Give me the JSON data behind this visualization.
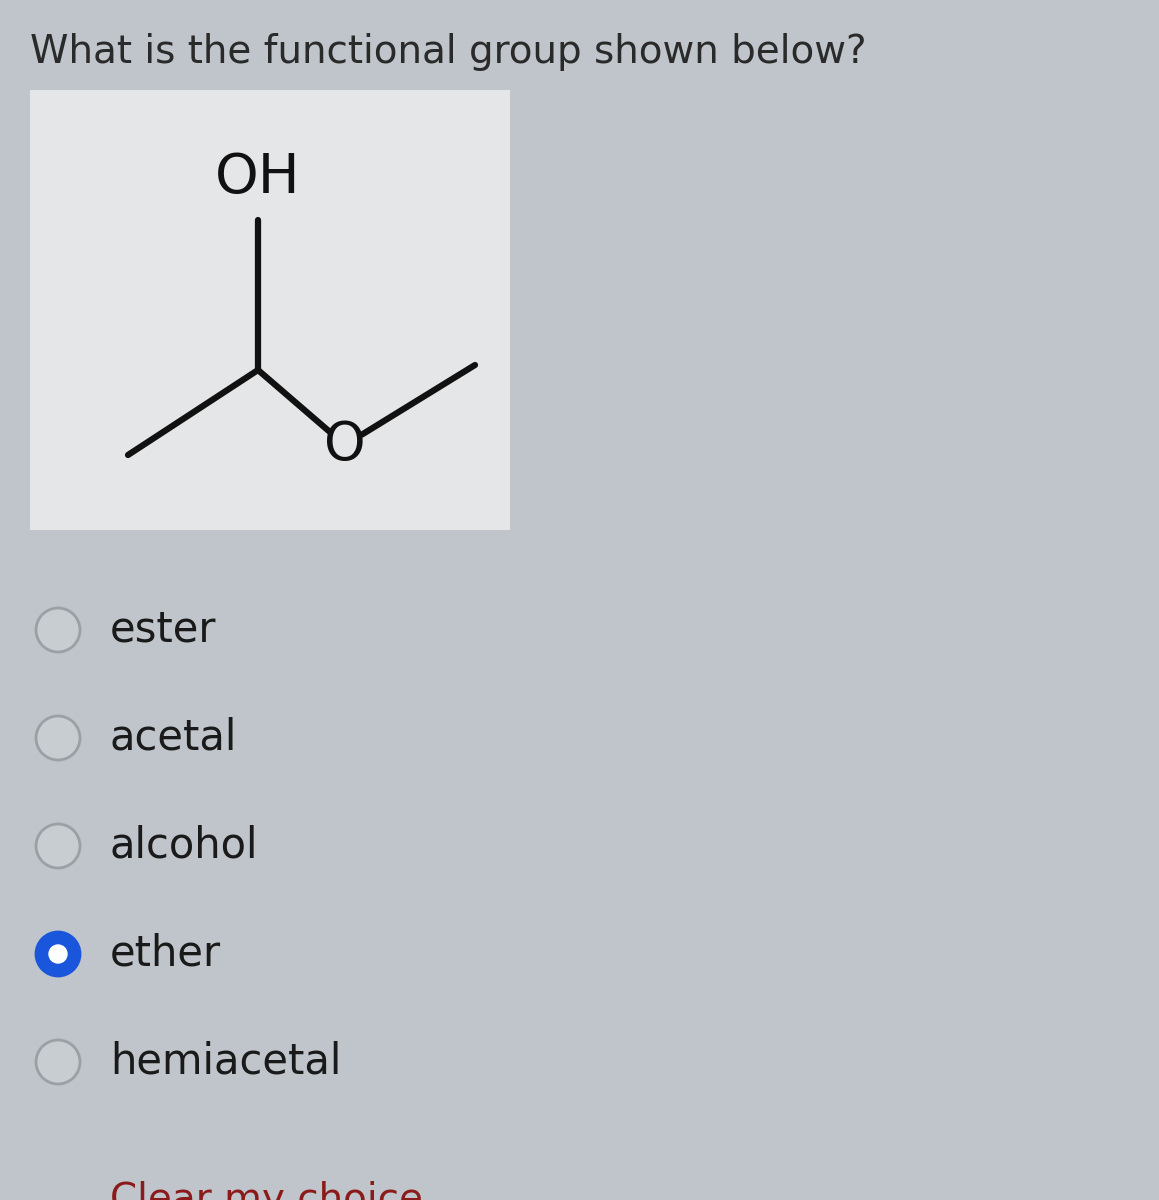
{
  "title": "What is the functional group shown below?",
  "title_fontsize": 28,
  "title_color": "#2a2a2a",
  "bg_color": "#bfc5ca",
  "box_bg_color": "#e4e6e8",
  "options": [
    "ester",
    "acetal",
    "alcohol",
    "ether",
    "hemiacetal"
  ],
  "option_fontsize": 30,
  "option_color": "#1a1a1a",
  "selected_index": 3,
  "radio_selected_color": "#1a56db",
  "clear_text": "Clear my choice",
  "clear_color": "#8b1a1a",
  "clear_fontsize": 28
}
